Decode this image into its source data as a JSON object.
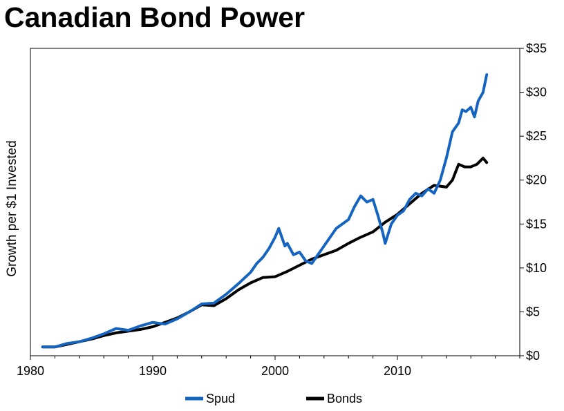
{
  "chart_data": {
    "type": "line",
    "title": "Canadian Bond Power",
    "xlabel": "",
    "ylabel": "Growth per $1 Invested",
    "xlim": [
      1980,
      2020
    ],
    "ylim": [
      0,
      35
    ],
    "x_ticks": [
      1980,
      1990,
      2000,
      2010
    ],
    "y_ticks": [
      0,
      5,
      10,
      15,
      20,
      25,
      30,
      35
    ],
    "y_tick_labels": [
      "$0",
      "$5",
      "$10",
      "$15",
      "$20",
      "$25",
      "$30",
      "$35"
    ],
    "y_axis_side": "right",
    "grid": false,
    "legend": "bottom-center",
    "series": [
      {
        "name": "Spud",
        "color": "#1565C0",
        "x": [
          1981,
          1982,
          1983,
          1984,
          1985,
          1986,
          1987,
          1988,
          1989,
          1990,
          1991,
          1992,
          1993,
          1994,
          1995,
          1996,
          1997,
          1998,
          1998.5,
          1999,
          1999.5,
          2000,
          2000.3,
          2000.8,
          2001,
          2001.5,
          2002,
          2002.5,
          2003,
          2003.5,
          2004,
          2005,
          2006,
          2006.5,
          2007,
          2007.5,
          2008,
          2008.4,
          2008.8,
          2009,
          2009.5,
          2010,
          2010.5,
          2011,
          2011.5,
          2012,
          2012.5,
          2013,
          2013.5,
          2014,
          2014.5,
          2015,
          2015.3,
          2015.6,
          2016,
          2016.3,
          2016.6,
          2017,
          2017.3
        ],
        "values": [
          1.0,
          1.0,
          1.4,
          1.6,
          2.0,
          2.5,
          3.1,
          2.9,
          3.4,
          3.8,
          3.6,
          4.2,
          5.0,
          5.9,
          6.0,
          7.0,
          8.2,
          9.5,
          10.5,
          11.2,
          12.2,
          13.5,
          14.5,
          12.5,
          12.8,
          11.5,
          11.8,
          10.8,
          10.5,
          11.5,
          12.5,
          14.5,
          15.5,
          17.0,
          18.2,
          17.5,
          17.8,
          16.0,
          14.0,
          12.8,
          15.0,
          16.0,
          16.5,
          17.8,
          18.5,
          18.2,
          19.0,
          18.5,
          20.0,
          22.5,
          25.5,
          26.5,
          28.0,
          27.8,
          28.3,
          27.2,
          29.0,
          30.0,
          32.0
        ]
      },
      {
        "name": "Bonds",
        "color": "#000000",
        "x": [
          1981,
          1982,
          1983,
          1984,
          1985,
          1986,
          1987,
          1988,
          1989,
          1990,
          1991,
          1992,
          1993,
          1994,
          1995,
          1996,
          1997,
          1998,
          1999,
          2000,
          2001,
          2002,
          2003,
          2004,
          2005,
          2006,
          2007,
          2008,
          2009,
          2010,
          2011,
          2012,
          2013,
          2014,
          2014.5,
          2015,
          2015.5,
          2016,
          2016.5,
          2017,
          2017.3
        ],
        "values": [
          1.0,
          1.0,
          1.3,
          1.6,
          1.9,
          2.3,
          2.6,
          2.8,
          3.0,
          3.3,
          3.8,
          4.3,
          5.0,
          5.8,
          5.7,
          6.5,
          7.5,
          8.3,
          8.9,
          9.0,
          9.6,
          10.3,
          11.0,
          11.5,
          12.0,
          12.8,
          13.5,
          14.1,
          15.2,
          16.1,
          17.3,
          18.5,
          19.4,
          19.2,
          20.0,
          21.8,
          21.5,
          21.5,
          21.8,
          22.5,
          22.0
        ]
      }
    ]
  }
}
